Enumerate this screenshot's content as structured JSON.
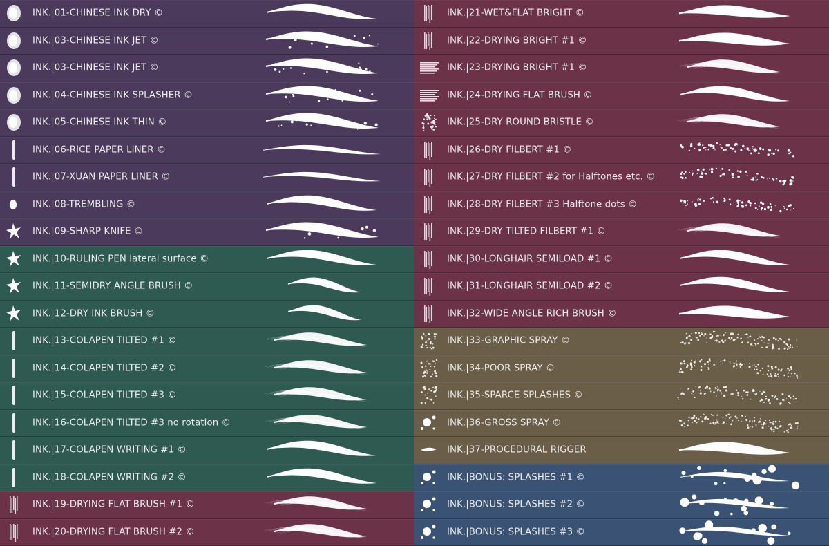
{
  "colors": {
    "purple": "#4b3a5c",
    "teal": "#2e5a52",
    "maroon": "#6b3248",
    "olive": "#6b5e48",
    "blue": "#3a5273",
    "text": "#ececec",
    "stroke": "#ffffff"
  },
  "left_items": [
    {
      "label": "INK.|01-CHINESE INK DRY ©",
      "color": "purple",
      "thumb": "blob-icon",
      "stroke": "solid"
    },
    {
      "label": "INK.|03-CHINESE INK JET ©",
      "color": "purple",
      "thumb": "blob-icon",
      "stroke": "jagged"
    },
    {
      "label": "INK.|03-CHINESE INK JET ©",
      "color": "purple",
      "thumb": "blob-icon",
      "stroke": "jagged"
    },
    {
      "label": "INK.|04-CHINESE INK SPLASHER ©",
      "color": "purple",
      "thumb": "blob-icon",
      "stroke": "jagged"
    },
    {
      "label": "INK.|05-CHINESE INK THIN ©",
      "color": "purple",
      "thumb": "blob-icon",
      "stroke": "jagged"
    },
    {
      "label": "INK.|06-RICE PAPER LINER ©",
      "color": "purple",
      "thumb": "line-icon",
      "stroke": "thin"
    },
    {
      "label": "INK.|07-XUAN PAPER LINER ©",
      "color": "purple",
      "thumb": "line-icon",
      "stroke": "thin"
    },
    {
      "label": "INK.|08-TREMBLING ©",
      "color": "purple",
      "thumb": "drop-icon",
      "stroke": "solid"
    },
    {
      "label": "INK.|09-SHARP KNIFE ©",
      "color": "purple",
      "thumb": "splat-icon",
      "stroke": "jagged"
    },
    {
      "label": "INK.|10-RULING PEN lateral surface ©",
      "color": "teal",
      "thumb": "splat-icon",
      "stroke": "solid"
    },
    {
      "label": "INK.|11-SEMIDRY ANGLE BRUSH ©",
      "color": "teal",
      "thumb": "splat-icon",
      "stroke": "short"
    },
    {
      "label": "INK.|12-DRY INK BRUSH ©",
      "color": "teal",
      "thumb": "splat-icon",
      "stroke": "short"
    },
    {
      "label": "INK.|13-COLAPEN TILTED #1 ©",
      "color": "teal",
      "thumb": "line-icon",
      "stroke": "dry"
    },
    {
      "label": "INK.|14-COLAPEN TILTED #2 ©",
      "color": "teal",
      "thumb": "line-icon",
      "stroke": "dry"
    },
    {
      "label": "INK.|15-COLAPEN TILTED #3 ©",
      "color": "teal",
      "thumb": "line-icon",
      "stroke": "dry"
    },
    {
      "label": "INK.|16-COLAPEN TILTED #3 no rotation ©",
      "color": "teal",
      "thumb": "line-icon",
      "stroke": "dry"
    },
    {
      "label": "INK.|17-COLAPEN WRITING #1 ©",
      "color": "teal",
      "thumb": "line-icon",
      "stroke": "solid"
    },
    {
      "label": "INK.|18-COLAPEN WRITING #2 ©",
      "color": "teal",
      "thumb": "line-icon",
      "stroke": "solid"
    },
    {
      "label": "INK.|19-DRYING FLAT BRUSH #1 ©",
      "color": "maroon",
      "thumb": "bristle-icon",
      "stroke": "dry"
    },
    {
      "label": "INK.|20-DRYING FLAT BRUSH #2 ©",
      "color": "maroon",
      "thumb": "bristle-icon",
      "stroke": "dry"
    }
  ],
  "right_items": [
    {
      "label": "INK.|21-WET&FLAT BRIGHT ©",
      "color": "maroon",
      "thumb": "bristle-icon",
      "stroke": "flat"
    },
    {
      "label": "INK.|22-DRYING BRIGHT #1 ©",
      "color": "maroon",
      "thumb": "bristle-icon",
      "stroke": "flat"
    },
    {
      "label": "INK.|23-DRYING BRIGHT #1 ©",
      "color": "maroon",
      "thumb": "streak-icon",
      "stroke": "dry"
    },
    {
      "label": "INK.|24-DRYING FLAT BRUSH ©",
      "color": "maroon",
      "thumb": "streak-icon",
      "stroke": "solid"
    },
    {
      "label": "INK.|25-DRY ROUND BRISTLE ©",
      "color": "maroon",
      "thumb": "speckle-icon",
      "stroke": "dry"
    },
    {
      "label": "INK.|26-DRY FILBERT #1 ©",
      "color": "maroon",
      "thumb": "bristle-icon",
      "stroke": "speckle"
    },
    {
      "label": "INK.|27-DRY FILBERT #2 for Halftones etc. ©",
      "color": "maroon",
      "thumb": "bristle-icon",
      "stroke": "speckle"
    },
    {
      "label": "INK.|28-DRY FILBERT #3 Halftone dots ©",
      "color": "maroon",
      "thumb": "bristle-icon",
      "stroke": "speckle"
    },
    {
      "label": "INK.|29-DRY TILTED FILBERT #1 ©",
      "color": "maroon",
      "thumb": "bristle-icon",
      "stroke": "dry"
    },
    {
      "label": "INK.|30-LONGHAIR SEMILOAD #1 ©",
      "color": "maroon",
      "thumb": "bristle-icon",
      "stroke": "solid"
    },
    {
      "label": "INK.|31-LONGHAIR SEMILOAD #2 ©",
      "color": "maroon",
      "thumb": "bristle-icon",
      "stroke": "solid"
    },
    {
      "label": "INK.|32-WIDE ANGLE RICH BRUSH ©",
      "color": "maroon",
      "thumb": "bristle-icon",
      "stroke": "flat"
    },
    {
      "label": "INK.|33-GRAPHIC SPRAY ©",
      "color": "olive",
      "thumb": "spray-icon",
      "stroke": "spray"
    },
    {
      "label": "INK.|34-POOR SPRAY ©",
      "color": "olive",
      "thumb": "spray-icon",
      "stroke": "spray"
    },
    {
      "label": "INK.|35-SPARCE SPLASHES ©",
      "color": "olive",
      "thumb": "spray-icon",
      "stroke": "spray"
    },
    {
      "label": "INK.|36-GROSS SPRAY ©",
      "color": "olive",
      "thumb": "splash-icon",
      "stroke": "spray"
    },
    {
      "label": "INK.|37-PROCEDURAL RIGGER",
      "color": "olive",
      "thumb": "rigger-icon",
      "stroke": "flat"
    },
    {
      "label": "INK.|BONUS: SPLASHES #1 ©",
      "color": "blue",
      "thumb": "splash-icon",
      "stroke": "splash"
    },
    {
      "label": "INK.|BONUS: SPLASHES #2 ©",
      "color": "blue",
      "thumb": "splash-icon",
      "stroke": "splash"
    },
    {
      "label": "INK.|BONUS: SPLASHES #3 ©",
      "color": "blue",
      "thumb": "splash-icon",
      "stroke": "splash"
    }
  ]
}
